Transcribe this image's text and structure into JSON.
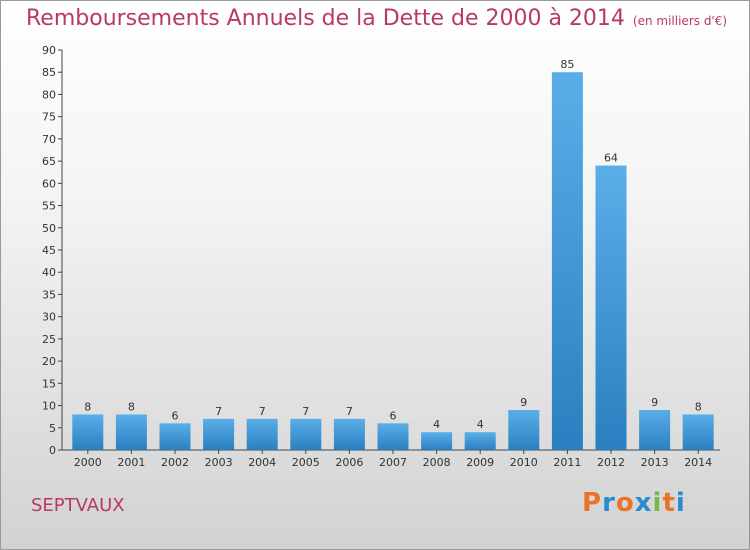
{
  "header": {
    "title": "Remboursements Annuels de la Dette de 2000 à 2014",
    "subtitle": "(en milliers d'€)"
  },
  "footer": {
    "commune": "SEPTVAUX",
    "logo_text": "Proxiti"
  },
  "colors": {
    "title": "#b83a62",
    "bar_light": "#5aaee8",
    "bar_dark": "#2a7fc0"
  },
  "chart_data": {
    "type": "bar",
    "title": "Remboursements Annuels de la Dette de 2000 à 2014",
    "subtitle": "(en milliers d'€)",
    "xlabel": "",
    "ylabel": "",
    "categories": [
      "2000",
      "2001",
      "2002",
      "2003",
      "2004",
      "2005",
      "2006",
      "2007",
      "2008",
      "2009",
      "2010",
      "2011",
      "2012",
      "2013",
      "2014"
    ],
    "values": [
      8,
      8,
      6,
      7,
      7,
      7,
      7,
      6,
      4,
      4,
      9,
      85,
      64,
      9,
      8
    ],
    "ylim": [
      0,
      90
    ],
    "yticks": [
      0,
      5,
      10,
      15,
      20,
      25,
      30,
      35,
      40,
      45,
      50,
      55,
      60,
      65,
      70,
      75,
      80,
      85,
      90
    ],
    "grid": false,
    "legend": "none"
  }
}
